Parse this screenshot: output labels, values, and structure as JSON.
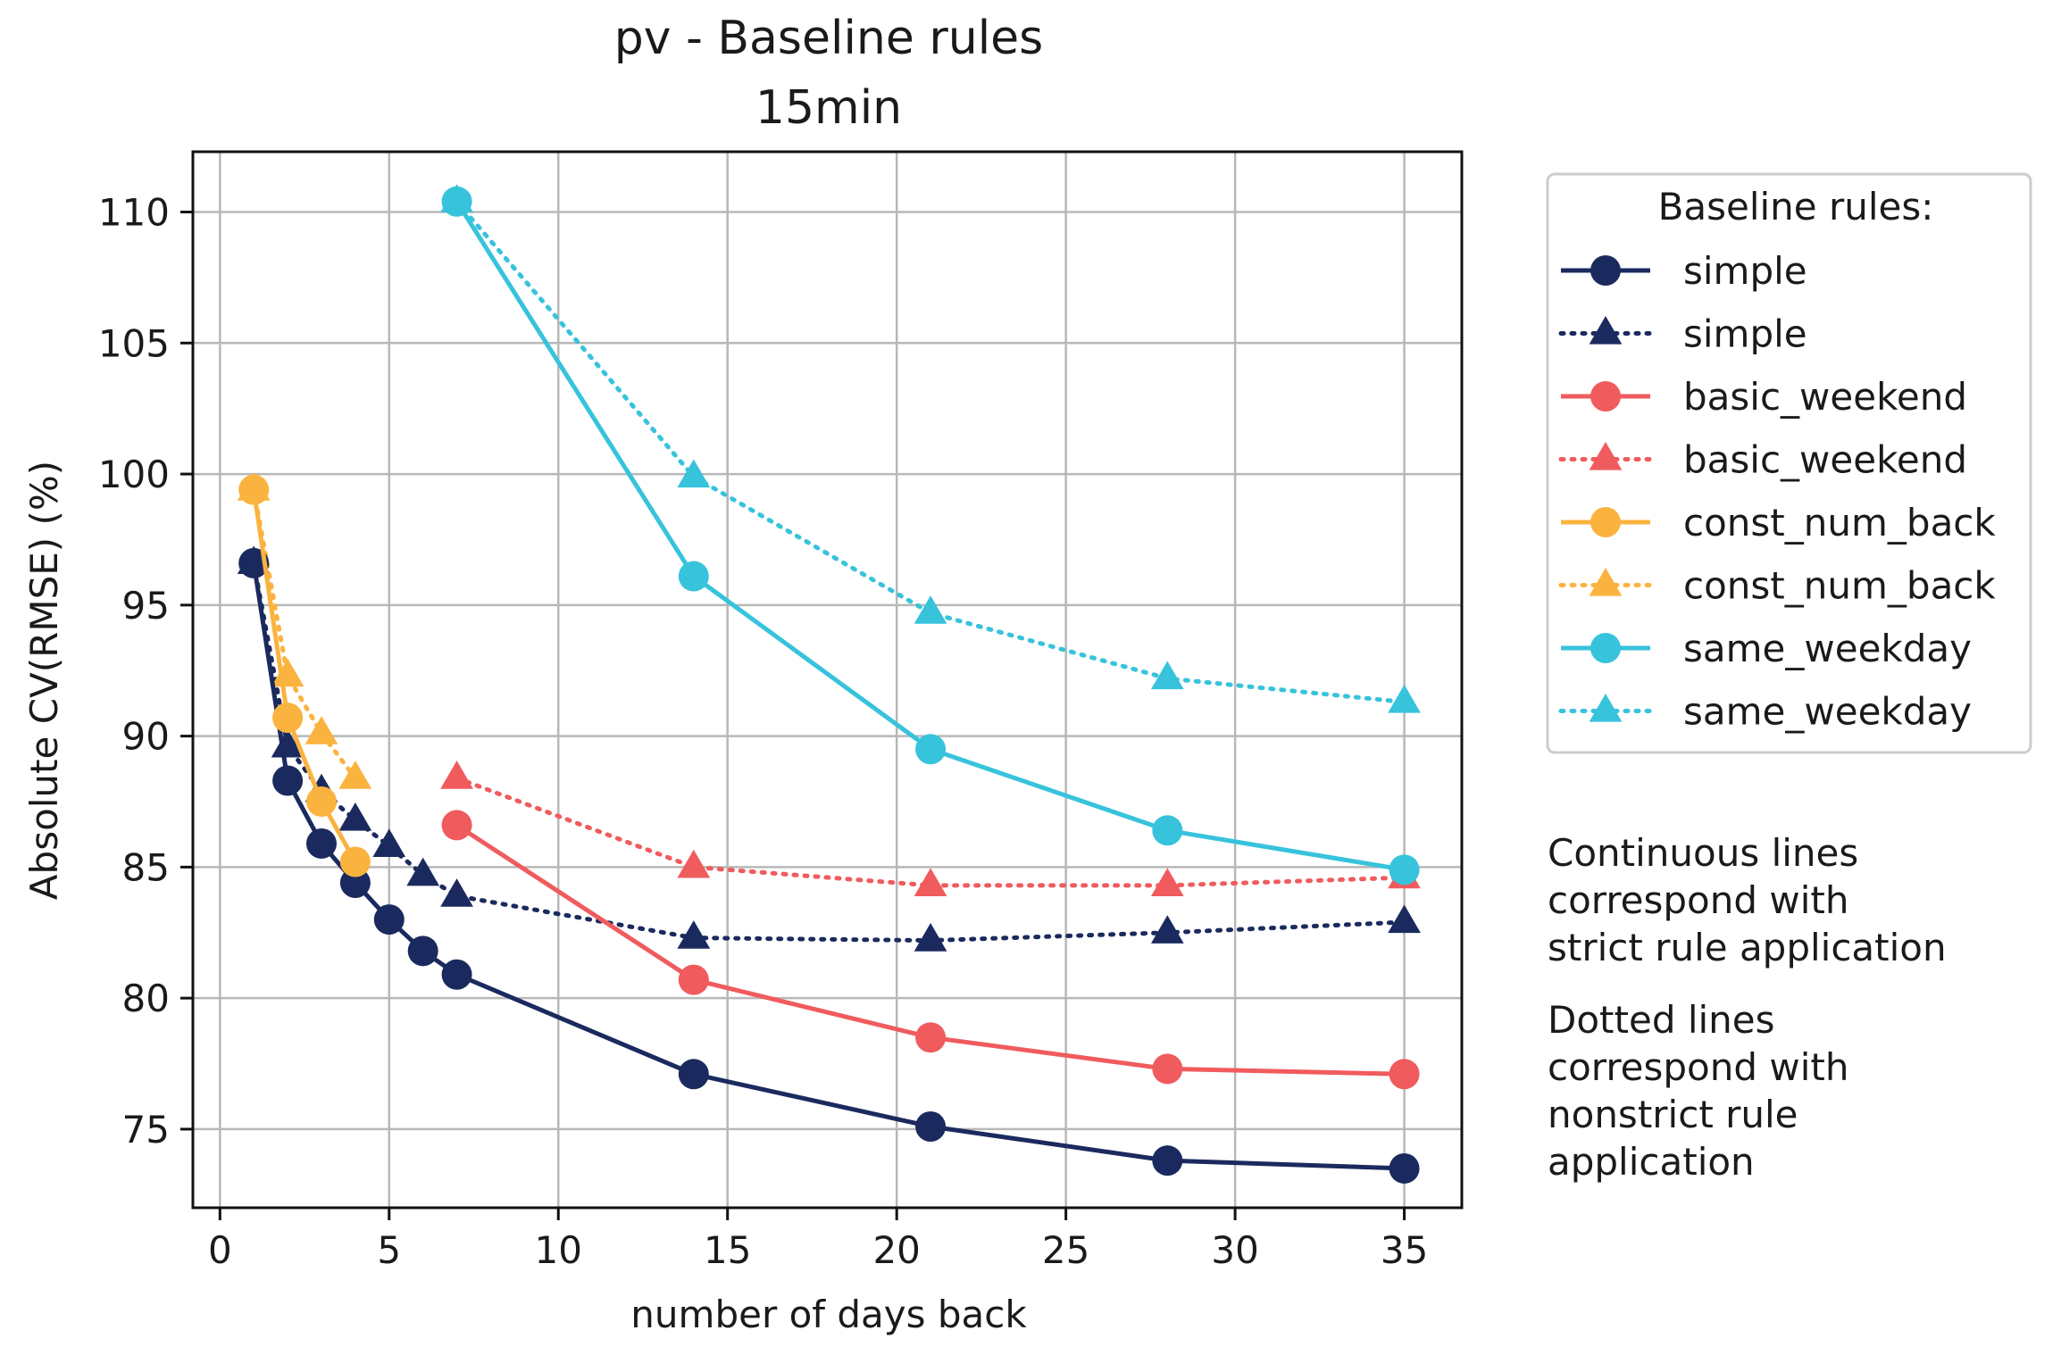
{
  "chart_data": {
    "type": "line",
    "title": "pv - Baseline rules",
    "subtitle": "15min",
    "xlabel": "number of days back",
    "ylabel": "Absolute CV(RMSE) (%)",
    "xlim": [
      -0.8,
      36.7
    ],
    "ylim": [
      72.0,
      112.3
    ],
    "xticks": [
      0,
      5,
      10,
      15,
      20,
      25,
      30,
      35
    ],
    "yticks": [
      75,
      80,
      85,
      90,
      95,
      100,
      105,
      110
    ],
    "grid": true,
    "legend": {
      "title": "Baseline rules:",
      "placement": "outside-right-top"
    },
    "series": [
      {
        "name": "simple",
        "color": "#1b2a5e",
        "style": "solid",
        "marker": "circle",
        "x": [
          1,
          2,
          3,
          4,
          5,
          6,
          7,
          14,
          21,
          28,
          35
        ],
        "y": [
          96.6,
          88.3,
          85.9,
          84.4,
          83.0,
          81.8,
          80.9,
          77.1,
          75.1,
          73.8,
          73.5
        ]
      },
      {
        "name": "simple",
        "color": "#1b2a5e",
        "style": "dotted",
        "marker": "triangle",
        "x": [
          1,
          2,
          3,
          4,
          5,
          6,
          7,
          14,
          21,
          28,
          35
        ],
        "y": [
          96.6,
          89.6,
          87.9,
          86.8,
          85.8,
          84.7,
          83.9,
          82.3,
          82.2,
          82.5,
          82.9
        ]
      },
      {
        "name": "basic_weekend",
        "color": "#f05b5e",
        "style": "solid",
        "marker": "circle",
        "x": [
          7,
          14,
          21,
          28,
          35
        ],
        "y": [
          86.6,
          80.7,
          78.5,
          77.3,
          77.1
        ]
      },
      {
        "name": "basic_weekend",
        "color": "#f05b5e",
        "style": "dotted",
        "marker": "triangle",
        "x": [
          7,
          14,
          21,
          28,
          35
        ],
        "y": [
          88.4,
          85.0,
          84.3,
          84.3,
          84.6
        ]
      },
      {
        "name": "const_num_back",
        "color": "#fbb33f",
        "style": "solid",
        "marker": "circle",
        "x": [
          1,
          2,
          3,
          4
        ],
        "y": [
          99.4,
          90.7,
          87.5,
          85.2
        ]
      },
      {
        "name": "const_num_back",
        "color": "#fbb33f",
        "style": "dotted",
        "marker": "triangle",
        "x": [
          1,
          2,
          3,
          4
        ],
        "y": [
          99.4,
          92.3,
          90.1,
          88.4
        ]
      },
      {
        "name": "same_weekday",
        "color": "#37c3dc",
        "style": "solid",
        "marker": "circle",
        "x": [
          7,
          14,
          21,
          28,
          35
        ],
        "y": [
          110.4,
          96.1,
          89.5,
          86.4,
          84.9
        ]
      },
      {
        "name": "same_weekday",
        "color": "#37c3dc",
        "style": "dotted",
        "marker": "triangle",
        "x": [
          7,
          14,
          21,
          28,
          35
        ],
        "y": [
          110.4,
          99.9,
          94.7,
          92.2,
          91.3
        ]
      }
    ],
    "annotations": [
      {
        "name": "note-continuous",
        "lines": [
          "Continuous lines",
          "correspond with",
          "strict rule application"
        ]
      },
      {
        "name": "note-dotted",
        "lines": [
          "Dotted lines",
          "correspond with",
          "nonstrict rule",
          "application"
        ]
      }
    ]
  }
}
